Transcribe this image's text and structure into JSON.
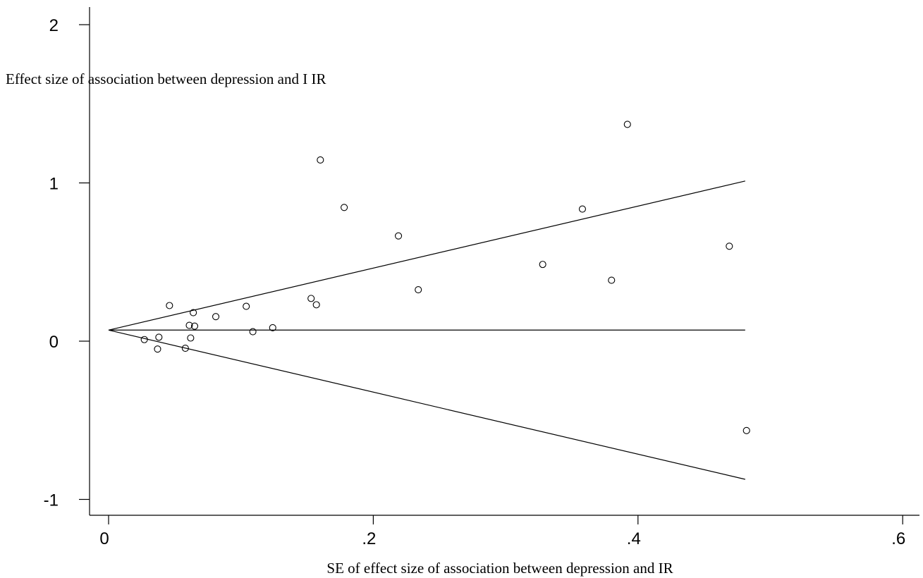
{
  "chart_data": {
    "type": "scatter",
    "title": "",
    "xlabel": "SE of effect size of association between depression and IR",
    "ylabel": "Effect size of association between depression and I IR",
    "xlim": [
      -0.012,
      0.61
    ],
    "ylim": [
      -1.15,
      2.1
    ],
    "x_ticks": [
      0,
      0.2,
      0.4,
      0.6
    ],
    "x_tick_labels": [
      "0",
      ".2",
      ".4",
      ".6"
    ],
    "y_ticks": [
      -1,
      0,
      1,
      2
    ],
    "y_tick_labels": [
      "-1",
      "0",
      "1",
      "2"
    ],
    "grid": false,
    "legend": "none",
    "points": [
      {
        "x": 0.027,
        "y": 0.01
      },
      {
        "x": 0.037,
        "y": -0.05
      },
      {
        "x": 0.038,
        "y": 0.025
      },
      {
        "x": 0.046,
        "y": 0.225
      },
      {
        "x": 0.058,
        "y": -0.045
      },
      {
        "x": 0.061,
        "y": 0.1
      },
      {
        "x": 0.062,
        "y": 0.02
      },
      {
        "x": 0.064,
        "y": 0.18
      },
      {
        "x": 0.065,
        "y": 0.095
      },
      {
        "x": 0.081,
        "y": 0.155
      },
      {
        "x": 0.104,
        "y": 0.22
      },
      {
        "x": 0.109,
        "y": 0.06
      },
      {
        "x": 0.124,
        "y": 0.085
      },
      {
        "x": 0.153,
        "y": 0.27
      },
      {
        "x": 0.157,
        "y": 0.23
      },
      {
        "x": 0.16,
        "y": 1.145
      },
      {
        "x": 0.178,
        "y": 0.845
      },
      {
        "x": 0.219,
        "y": 0.665
      },
      {
        "x": 0.234,
        "y": 0.325
      },
      {
        "x": 0.328,
        "y": 0.485
      },
      {
        "x": 0.358,
        "y": 0.835
      },
      {
        "x": 0.38,
        "y": 0.385
      },
      {
        "x": 0.392,
        "y": 1.37
      },
      {
        "x": 0.469,
        "y": 0.6
      },
      {
        "x": 0.482,
        "y": -0.565
      }
    ],
    "pooled_line": {
      "x": [
        0,
        0.481
      ],
      "y": [
        0.07,
        0.07
      ]
    },
    "upper_limit": {
      "x": [
        0,
        0.481
      ],
      "y": [
        0.07,
        1.012
      ]
    },
    "lower_limit": {
      "x": [
        0,
        0.481
      ],
      "y": [
        0.07,
        -0.873
      ]
    }
  }
}
